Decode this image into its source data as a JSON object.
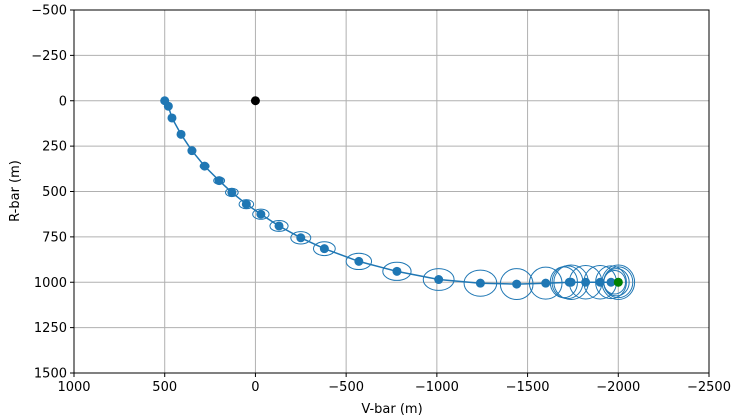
{
  "chart_data": {
    "type": "scatter",
    "title": "",
    "xlabel": "V-bar (m)",
    "ylabel": "R-bar (m)",
    "xlim": [
      1000,
      -2500
    ],
    "ylim": [
      -500,
      1500
    ],
    "x_inverted": true,
    "y_inverted": true,
    "xticks": [
      1000,
      500,
      0,
      -500,
      -1000,
      -1500,
      -2000,
      -2500
    ],
    "yticks": [
      -500,
      -250,
      0,
      250,
      500,
      750,
      1000,
      1250,
      1500
    ],
    "xtick_labels": [
      "1000",
      "500",
      "0",
      "−500",
      "−1000",
      "−1500",
      "−2000",
      "−2500"
    ],
    "ytick_labels": [
      "−500",
      "−250",
      "0",
      "250",
      "500",
      "750",
      "1000",
      "1250",
      "1500"
    ],
    "grid": true,
    "colors": {
      "trajectory": "#1f77b4",
      "target": "#000000",
      "start": "#008000",
      "grid": "#b0b0b0"
    },
    "trajectory": {
      "x": [
        -2000,
        -1960,
        -1900,
        -1820,
        -1740,
        -1600,
        -1440,
        -1240,
        -1010,
        -780,
        -570,
        -380,
        -250,
        -130,
        -30,
        50,
        130,
        200,
        280,
        350,
        410,
        460,
        480,
        500
      ],
      "y": [
        1000,
        1000,
        1000,
        1000,
        1000,
        1005,
        1010,
        1005,
        985,
        940,
        885,
        815,
        755,
        690,
        625,
        570,
        505,
        440,
        360,
        275,
        185,
        95,
        30,
        0
      ]
    },
    "points": {
      "x": [
        -2000,
        -1960,
        -1900,
        -1820,
        -1740,
        -1730,
        -1600,
        -1440,
        -1240,
        -1010,
        -780,
        -570,
        -380,
        -250,
        -130,
        -30,
        50,
        130,
        200,
        280,
        350,
        410,
        460,
        480,
        500
      ],
      "y": [
        1000,
        1000,
        1000,
        1000,
        1000,
        1000,
        1005,
        1010,
        1005,
        985,
        940,
        885,
        815,
        755,
        690,
        625,
        570,
        505,
        440,
        360,
        275,
        185,
        95,
        30,
        0
      ]
    },
    "uncertainty_ellipses": [
      {
        "cx": -2000,
        "cy": 1000,
        "rx": 90,
        "ry": 95
      },
      {
        "cx": -2000,
        "cy": 1000,
        "rx": 80,
        "ry": 85
      },
      {
        "cx": -1990,
        "cy": 1000,
        "rx": 70,
        "ry": 75
      },
      {
        "cx": -1980,
        "cy": 1000,
        "rx": 60,
        "ry": 65
      },
      {
        "cx": -1960,
        "cy": 1000,
        "rx": 85,
        "ry": 90
      },
      {
        "cx": -1900,
        "cy": 1000,
        "rx": 90,
        "ry": 92
      },
      {
        "cx": -1820,
        "cy": 1000,
        "rx": 90,
        "ry": 92
      },
      {
        "cx": -1740,
        "cy": 1000,
        "rx": 95,
        "ry": 95
      },
      {
        "cx": -1720,
        "cy": 1000,
        "rx": 85,
        "ry": 90
      },
      {
        "cx": -1700,
        "cy": 1000,
        "rx": 75,
        "ry": 85
      },
      {
        "cx": -1600,
        "cy": 1005,
        "rx": 90,
        "ry": 88
      },
      {
        "cx": -1440,
        "cy": 1010,
        "rx": 90,
        "ry": 85
      },
      {
        "cx": -1240,
        "cy": 1005,
        "rx": 90,
        "ry": 72
      },
      {
        "cx": -1010,
        "cy": 985,
        "rx": 85,
        "ry": 60
      },
      {
        "cx": -780,
        "cy": 940,
        "rx": 78,
        "ry": 50
      },
      {
        "cx": -570,
        "cy": 885,
        "rx": 70,
        "ry": 45
      },
      {
        "cx": -380,
        "cy": 815,
        "rx": 60,
        "ry": 38
      },
      {
        "cx": -250,
        "cy": 755,
        "rx": 55,
        "ry": 34
      },
      {
        "cx": -130,
        "cy": 690,
        "rx": 50,
        "ry": 30
      },
      {
        "cx": -30,
        "cy": 625,
        "rx": 45,
        "ry": 28
      },
      {
        "cx": 50,
        "cy": 570,
        "rx": 40,
        "ry": 25
      },
      {
        "cx": 130,
        "cy": 505,
        "rx": 35,
        "ry": 23
      },
      {
        "cx": 200,
        "cy": 440,
        "rx": 30,
        "ry": 20
      },
      {
        "cx": 280,
        "cy": 360,
        "rx": 25,
        "ry": 18
      },
      {
        "cx": 350,
        "cy": 275,
        "rx": 22,
        "ry": 16
      },
      {
        "cx": 410,
        "cy": 185,
        "rx": 18,
        "ry": 14
      },
      {
        "cx": 460,
        "cy": 95,
        "rx": 15,
        "ry": 12
      },
      {
        "cx": 480,
        "cy": 30,
        "rx": 12,
        "ry": 10
      },
      {
        "cx": 500,
        "cy": 0,
        "rx": 10,
        "ry": 8
      }
    ],
    "target_point": {
      "x": 0,
      "y": 0
    },
    "start_point": {
      "x": -2000,
      "y": 1000
    }
  }
}
